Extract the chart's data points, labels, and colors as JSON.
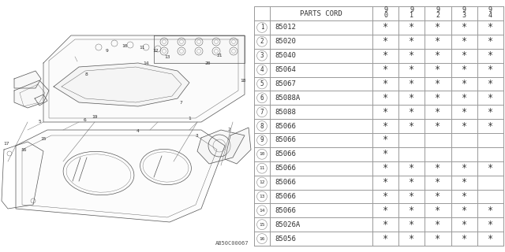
{
  "bg_color": "#ffffff",
  "line_color": "#555555",
  "text_color": "#333333",
  "table_line_color": "#999999",
  "rows": [
    {
      "num": 1,
      "code": "85012",
      "cols": [
        true,
        true,
        true,
        true,
        true
      ]
    },
    {
      "num": 2,
      "code": "85020",
      "cols": [
        true,
        true,
        true,
        true,
        true
      ]
    },
    {
      "num": 3,
      "code": "85040",
      "cols": [
        true,
        true,
        true,
        true,
        true
      ]
    },
    {
      "num": 4,
      "code": "85064",
      "cols": [
        true,
        true,
        true,
        true,
        true
      ]
    },
    {
      "num": 5,
      "code": "85067",
      "cols": [
        true,
        true,
        true,
        true,
        true
      ]
    },
    {
      "num": 6,
      "code": "85088A",
      "cols": [
        true,
        true,
        true,
        true,
        true
      ]
    },
    {
      "num": 7,
      "code": "85088",
      "cols": [
        true,
        true,
        true,
        true,
        true
      ]
    },
    {
      "num": 8,
      "code": "85066",
      "cols": [
        true,
        true,
        true,
        true,
        true
      ]
    },
    {
      "num": 9,
      "code": "85066",
      "cols": [
        true,
        false,
        false,
        false,
        false
      ]
    },
    {
      "num": 10,
      "code": "85066",
      "cols": [
        true,
        false,
        false,
        false,
        false
      ]
    },
    {
      "num": 11,
      "code": "85066",
      "cols": [
        true,
        true,
        true,
        true,
        true
      ]
    },
    {
      "num": 12,
      "code": "85066",
      "cols": [
        true,
        true,
        true,
        true,
        false
      ]
    },
    {
      "num": 13,
      "code": "85066",
      "cols": [
        true,
        true,
        true,
        true,
        false
      ]
    },
    {
      "num": 14,
      "code": "85066",
      "cols": [
        true,
        true,
        true,
        true,
        true
      ]
    },
    {
      "num": 15,
      "code": "85026A",
      "cols": [
        true,
        true,
        true,
        true,
        true
      ]
    },
    {
      "num": 16,
      "code": "85056",
      "cols": [
        true,
        true,
        true,
        true,
        true
      ]
    }
  ],
  "footnote": "AB50C00067",
  "font_size": 6.5,
  "header_font_size": 6.5,
  "year_labels": [
    "9\n0",
    "9\n1",
    "9\n2",
    "9\n3",
    "9\n4"
  ]
}
